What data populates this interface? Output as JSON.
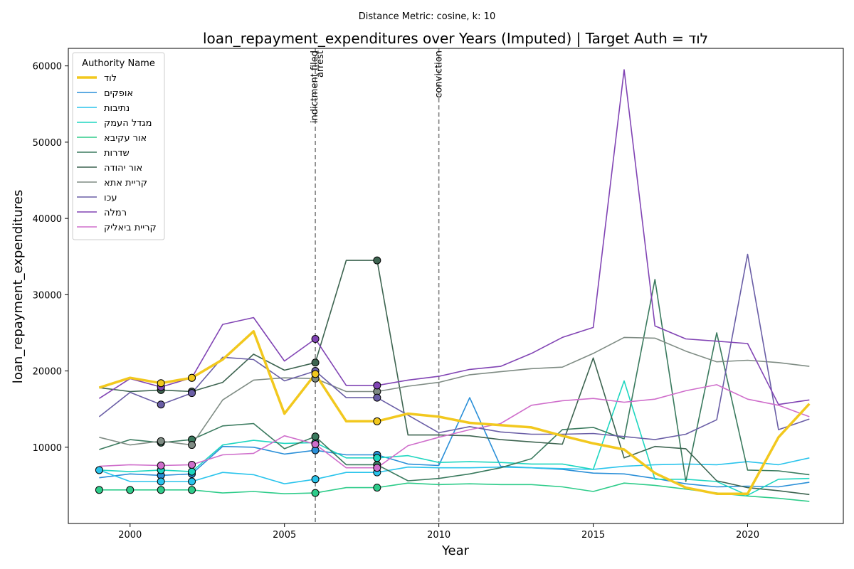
{
  "chart_data": {
    "type": "line",
    "suptitle": "Distance Metric: cosine, k: 10",
    "title": "loan_repayment_expenditures over Years (Imputed) | Target Auth = לוד",
    "xlabel": "Year",
    "ylabel": "loan_repayment_expenditures",
    "xlim": [
      1998.0,
      2023.1
    ],
    "ylim": [
      0,
      62300
    ],
    "xticks": [
      2000,
      2005,
      2010,
      2015,
      2020
    ],
    "yticks": [
      10000,
      20000,
      30000,
      40000,
      50000,
      60000
    ],
    "grid": false,
    "legend_title": "Authority Name",
    "legend_position": "top-left",
    "events": [
      {
        "x": 2006,
        "label": "indictment filed"
      },
      {
        "x": 2006,
        "label": "arrest"
      },
      {
        "x": 2010,
        "label": "conviction"
      }
    ],
    "x": [
      1999,
      2000,
      2001,
      2002,
      2003,
      2004,
      2005,
      2006,
      2007,
      2008,
      2009,
      2010,
      2011,
      2012,
      2013,
      2014,
      2015,
      2016,
      2017,
      2018,
      2019,
      2020,
      2021,
      2022
    ],
    "series": [
      {
        "name": "לוד",
        "color": "#f2c81e",
        "target": true,
        "values": [
          17800,
          19100,
          18400,
          19100,
          21500,
          25200,
          14400,
          19600,
          13400,
          13400,
          14400,
          14000,
          13200,
          12900,
          12600,
          11500,
          10500,
          9700,
          6600,
          4700,
          3900,
          3900,
          11300,
          15700
        ],
        "imputed_x": [
          2001,
          2002,
          2006,
          2008
        ]
      },
      {
        "name": "אופקים",
        "color": "#2a8fd8",
        "values": [
          6000,
          6500,
          6300,
          6500,
          10100,
          10000,
          9100,
          9600,
          9000,
          9000,
          7800,
          7600,
          16500,
          7500,
          7300,
          7100,
          6600,
          6500,
          5900,
          5200,
          4800,
          4900,
          4800,
          5400
        ],
        "imputed_x": [
          2001,
          2002,
          2006,
          2008
        ]
      },
      {
        "name": "נתיבות",
        "color": "#2ac4ec",
        "values": [
          7000,
          5500,
          5500,
          5500,
          6700,
          6400,
          5200,
          5800,
          6700,
          6700,
          7400,
          7300,
          7300,
          7400,
          7300,
          7200,
          7100,
          7500,
          7700,
          7800,
          7700,
          8100,
          7700,
          8600
        ],
        "imputed_x": [
          1999,
          2001,
          2002,
          2006,
          2008
        ]
      },
      {
        "name": "מגדל העמק",
        "color": "#1ed6c0",
        "values": [
          7000,
          6800,
          7000,
          6800,
          10300,
          10900,
          10500,
          10600,
          8600,
          8600,
          8900,
          8000,
          8100,
          8000,
          7800,
          7800,
          7100,
          18700,
          5800,
          5800,
          5500,
          3700,
          5800,
          5900
        ],
        "imputed_x": [
          2001,
          2002,
          2006,
          2008
        ]
      },
      {
        "name": "אור עקיבא",
        "color": "#2ecc8a",
        "values": [
          4400,
          4400,
          4400,
          4400,
          4000,
          4200,
          3900,
          4000,
          4700,
          4700,
          5300,
          5100,
          5200,
          5100,
          5100,
          4800,
          4200,
          5300,
          5000,
          4500,
          4000,
          3600,
          3300,
          2900
        ],
        "imputed_x": [
          1999,
          2000,
          2001,
          2002,
          2006,
          2008
        ]
      },
      {
        "name": "שדרות",
        "color": "#3a7a5e",
        "values": [
          9700,
          11000,
          10600,
          11000,
          12800,
          13100,
          9800,
          11400,
          7700,
          7700,
          5600,
          5900,
          6500,
          7300,
          8500,
          12300,
          12600,
          11100,
          32000,
          5500,
          25000,
          7000,
          6900,
          6400
        ],
        "imputed_x": [
          2001,
          2002,
          2006,
          2008
        ]
      },
      {
        "name": "אור יהודה",
        "color": "#3d6450",
        "values": [
          17800,
          17300,
          17500,
          17300,
          18500,
          22200,
          20100,
          21100,
          34500,
          34500,
          11600,
          11600,
          11500,
          11000,
          10700,
          10400,
          21700,
          8600,
          10100,
          9800,
          5600,
          4700,
          4300,
          3800
        ],
        "imputed_x": [
          2001,
          2002,
          2006,
          2008
        ]
      },
      {
        "name": "קריית אתא",
        "color": "#7f8c84",
        "values": [
          11300,
          10300,
          10800,
          10300,
          16200,
          18800,
          19100,
          19000,
          17300,
          17300,
          18000,
          18500,
          19500,
          19900,
          20300,
          20500,
          22300,
          24400,
          24300,
          22600,
          21200,
          21400,
          21100,
          20600
        ],
        "imputed_x": [
          2001,
          2002,
          2006,
          2008
        ]
      },
      {
        "name": "עכו",
        "color": "#6a5ea6",
        "values": [
          14000,
          17200,
          15600,
          17100,
          21800,
          21500,
          18700,
          20000,
          16500,
          16500,
          14200,
          11900,
          12700,
          12000,
          11700,
          11700,
          11800,
          11400,
          11000,
          11700,
          13600,
          35300,
          12300,
          13700
        ],
        "imputed_x": [
          2001,
          2002,
          2006,
          2008
        ]
      },
      {
        "name": "רמלה",
        "color": "#8144b4",
        "values": [
          16400,
          19000,
          17900,
          19100,
          26100,
          27000,
          21300,
          24200,
          18100,
          18100,
          18800,
          19300,
          20200,
          20600,
          22300,
          24400,
          25700,
          59500,
          25900,
          24200,
          23900,
          23600,
          15600,
          16200
        ],
        "imputed_x": [
          2001,
          2002,
          2006,
          2008
        ]
      },
      {
        "name": "קריית ביאליק",
        "color": "#cf6ecb",
        "values": [
          7500,
          7700,
          7600,
          7700,
          9000,
          9200,
          11500,
          10400,
          7300,
          7300,
          10200,
          11300,
          12300,
          13100,
          15500,
          16100,
          16400,
          15900,
          16300,
          17400,
          18200,
          16300,
          15500,
          14000
        ],
        "imputed_x": [
          2001,
          2002,
          2006,
          2008
        ]
      }
    ]
  }
}
